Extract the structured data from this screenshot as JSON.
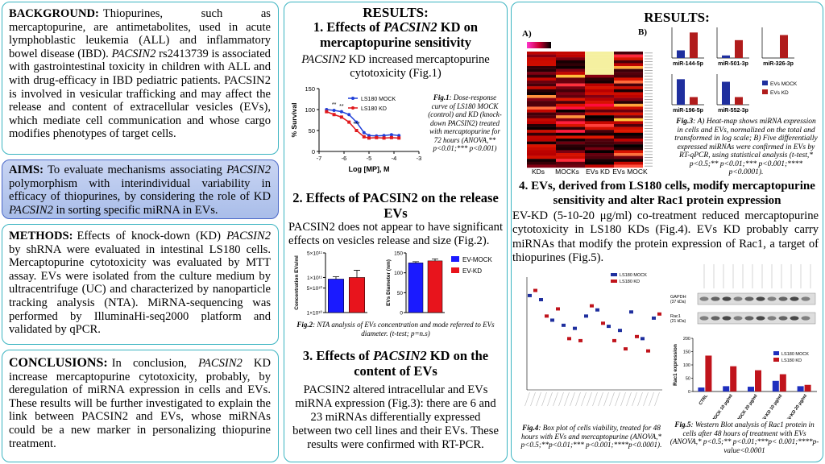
{
  "background": {
    "heading": "BACKGROUND:",
    "runs": [
      "Thiopurines, such as mercaptopurine, are antimetabolites, used in acute lymphoblastic leukemia (ALL) and inflammatory bowel disease (IBD). ",
      {
        "italic": "PACSIN2"
      },
      " rs2413739 is associated with gastrointestinal toxicity in children with ALL and with drug-efficacy in IBD pediatric patients. PACSIN2 is involved in vesicular trafficking and may affect the release and content of extracellular vesicles (EVs), which mediate cell communication and whose cargo modifies phenotypes of target cells."
    ]
  },
  "aims": {
    "heading": "AIMS:",
    "runs": [
      "To evaluate mechanisms associating ",
      {
        "italic": "PACSIN2"
      },
      " polymorphism with interindividual variability in efficacy of thiopurines, by considering the role of KD ",
      {
        "italic": "PACSIN2"
      },
      " in sorting specific miRNA in EVs."
    ]
  },
  "methods": {
    "heading": "METHODS:",
    "runs": [
      "Effects of knock-down (KD) ",
      {
        "italic": "PACSIN2"
      },
      " by shRNA were evaluated in intestinal LS180 cells. Mercaptopurine cytotoxicity was evaluated by MTT assay. EVs were isolated from the culture medium by ultracentrifuge (UC) and characterized by nanoparticle tracking analysis (NTA). MiRNA-sequencing was performed by IlluminaHi-seq2000 platform and validated by qPCR."
    ]
  },
  "conclusions": {
    "heading": "CONCLUSIONS:",
    "runs": [
      "In conclusion, ",
      {
        "italic": "PACSIN2"
      },
      " KD increase mercaptopurine cytotoxicity, probably, by deregulation of miRNA expression in cells and EVs. These results will be further investigated to explain the link between PACSIN2 and EVs, whose miRNAs could be a new marker in personalizing thiopurine treatment."
    ]
  },
  "results_middle": {
    "heading": "RESULTS:",
    "section1": {
      "title": [
        "1. Effects of ",
        {
          "italic": "PACSIN2"
        },
        " KD on mercaptopurine sensitivity"
      ],
      "text": [
        {
          "italic": "PACSIN2"
        },
        " KD increased mercaptopurine cytotoxicity (Fig.1)"
      ]
    },
    "section2": {
      "title": [
        "2. Effects of PACSIN2 on the release EVs"
      ],
      "text": [
        "PACSIN2 does not appear to have significant effects on vesicles release and size (Fig.2)."
      ]
    },
    "section3": {
      "title": [
        "3. Effects of ",
        {
          "italic": "PACSIN2"
        },
        " KD on the content of EVs"
      ],
      "text": [
        "PACSIN2 altered intracellular and EVs miRNA expression (Fig.3): there are 6 and 23 miRNAs differentially expressed between two cell lines and their EVs. These results were confirmed with RT-PCR."
      ]
    }
  },
  "fig1": {
    "type": "line",
    "caption": {
      "label": "Fig.1",
      "text": ": Dose-response curve of LS180 MOCK (control) and KD (knock-down PACSIN2) treated with mercaptopurine for 72 hours (ANOVA,** p<0.01;*** p<0.001)"
    },
    "xlabel": "Log [MP], M",
    "ylabel": "% Survival",
    "xlim": [
      -7,
      -3
    ],
    "xticks": [
      -7,
      -6,
      -5,
      -4,
      -3
    ],
    "ylim": [
      0,
      150
    ],
    "yticks": [
      0,
      50,
      100,
      150
    ],
    "x": [
      -6.7,
      -6.4,
      -6.1,
      -5.8,
      -5.5,
      -5.2,
      -5.0,
      -4.7,
      -4.4,
      -4.1,
      -3.8
    ],
    "series": [
      {
        "name": "LS180 MOCK",
        "color": "#1f3fd8",
        "values": [
          100,
          98,
          95,
          88,
          70,
          45,
          38,
          37,
          38,
          40,
          38
        ]
      },
      {
        "name": "LS180 KD",
        "color": "#e0181c",
        "values": [
          95,
          88,
          82,
          70,
          50,
          35,
          32,
          33,
          32,
          33,
          32
        ]
      }
    ],
    "annotations": [
      {
        "text": "**",
        "x": -6.4,
        "y": 108
      },
      {
        "text": "**",
        "x": -6.1,
        "y": 104
      },
      {
        "text": "***",
        "x": -5.5,
        "y": 62
      }
    ]
  },
  "fig2": {
    "type": "bar",
    "caption": {
      "label": "Fig.2",
      "text": ": NTA analysis of EVs concentration and mode referred to EVs diameter. (t-test; p=n.s)"
    },
    "series": [
      {
        "name": "EV-MOCK",
        "color": "#1a1aff"
      },
      {
        "name": "EV-KD",
        "color": "#e8141c"
      }
    ],
    "panels": [
      {
        "ylabel": "Concentration EVs/ml",
        "log": true,
        "ylim": [
          10000000000,
          500000000000
        ],
        "yticks": [
          {
            "value": 10000000000,
            "label": "1×10¹⁰"
          },
          {
            "value": 50000000000,
            "label": "5×10¹⁰"
          },
          {
            "value": 100000000000,
            "label": "1×10¹¹"
          },
          {
            "value": 500000000000,
            "label": "5×10¹¹"
          }
        ],
        "values": [
          90000000000,
          100000000000
        ],
        "errors": [
          15000000000,
          60000000000
        ]
      },
      {
        "ylabel": "EVs Diameter (nm)",
        "log": false,
        "ylim": [
          0,
          150
        ],
        "yticks": [
          0,
          50,
          100,
          150
        ],
        "values": [
          125,
          130
        ],
        "errors": [
          3,
          5
        ]
      }
    ]
  },
  "results_right": {
    "heading": "RESULTS:",
    "panel_a": "A)",
    "panel_b": "B)",
    "heatmap_columns": [
      "KDs",
      "MOCKs",
      "EVs KD",
      "EVs MOCK"
    ],
    "section4": {
      "title": [
        "4. EVs, derived from LS180 cells, modify mercaptopurine sensitivity and alter Rac1 protein expression"
      ],
      "text": [
        "EV-KD (5-10-20 μg/ml) co-treatment reduced mercaptopurine cytotoxicity in LS180 KDs (Fig.4). EVs KD probably carry miRNAs that modify the protein expression of Rac1, a target of thiopurines (Fig.5)."
      ]
    }
  },
  "fig3": {
    "type": "bar",
    "caption": {
      "label": "Fig.3",
      "text": ": A) Heat-map shows miRNA expression in cells and EVs, normalized on the total and transformed in log scale; B) Five differentially expressed miRNAs were confirmed in EVs by RT-qPCR, using statistical analysis (t-test,* p<0.5;** p<0.01;*** p<0.001;**** p<0.0001)."
    },
    "series": [
      {
        "name": "EVs MOCK",
        "color": "#1f2f9e"
      },
      {
        "name": "EVs KD",
        "color": "#b01c1c"
      }
    ],
    "ylim": [
      0,
      1.2
    ],
    "panels": [
      {
        "name": "miR-144-5p",
        "values": [
          0.3,
          1.0
        ]
      },
      {
        "name": "miR-501-3p",
        "values": [
          0.1,
          0.7
        ]
      },
      {
        "name": "miR-326-3p",
        "values": [
          0,
          0.9
        ]
      },
      {
        "name": "miR-196-5p",
        "values": [
          1.0,
          0.3
        ]
      },
      {
        "name": "miR-552-3p",
        "values": [
          0.9,
          0.3
        ]
      }
    ]
  },
  "fig4": {
    "type": "box",
    "caption": {
      "label": "Fig.4",
      "text": ": Box plot of cells viability, treated for 48 hours with EVs and mercaptopurine (ANOVA,* p<0.5;**p<0.01;*** p<0.001;****p<0.0001)."
    },
    "ylim": [
      0,
      110
    ],
    "series": [
      {
        "name": "LS180 MOCK",
        "color": "#1f2f9e",
        "values": [
          92,
          88,
          68,
          63,
          60,
          72,
          78,
          62,
          58,
          76,
          50,
          70
        ]
      },
      {
        "name": "LS180 KD",
        "color": "#c0141c",
        "values": [
          97,
          72,
          79,
          50,
          48,
          82,
          65,
          48,
          40,
          52,
          38,
          74
        ]
      }
    ]
  },
  "fig5": {
    "type": "bar",
    "caption": {
      "label": "Fig.5",
      "text": ": Western Blot analysis of Rac1 protein in cells after 48 hours of treatment with EVs (ANOVA,* p<0.5;** p<0.01;***p< 0.001;****p-value<0.0001"
    },
    "blot_labels": [
      [
        "GAPDH",
        "(37 kDa)"
      ],
      [
        "Rac1",
        "(21 kDa)"
      ]
    ],
    "ylabel": "Rac1 expression",
    "ylim": [
      0,
      200
    ],
    "yticks": [
      0,
      50,
      100,
      150,
      200
    ],
    "categories": [
      "CTRL",
      "EV-MOCK 10 μg/ml",
      "EV-MOCK 20 μg/ml",
      "EV-KD 10 μg/ml",
      "EV-KD 20 μg/ml"
    ],
    "series": [
      {
        "name": "LS180 MOCK",
        "color": "#1f2fbe",
        "values": [
          15,
          20,
          18,
          40,
          20
        ]
      },
      {
        "name": "LS180 KD",
        "color": "#c0141c",
        "values": [
          135,
          95,
          80,
          65,
          25
        ]
      }
    ]
  }
}
